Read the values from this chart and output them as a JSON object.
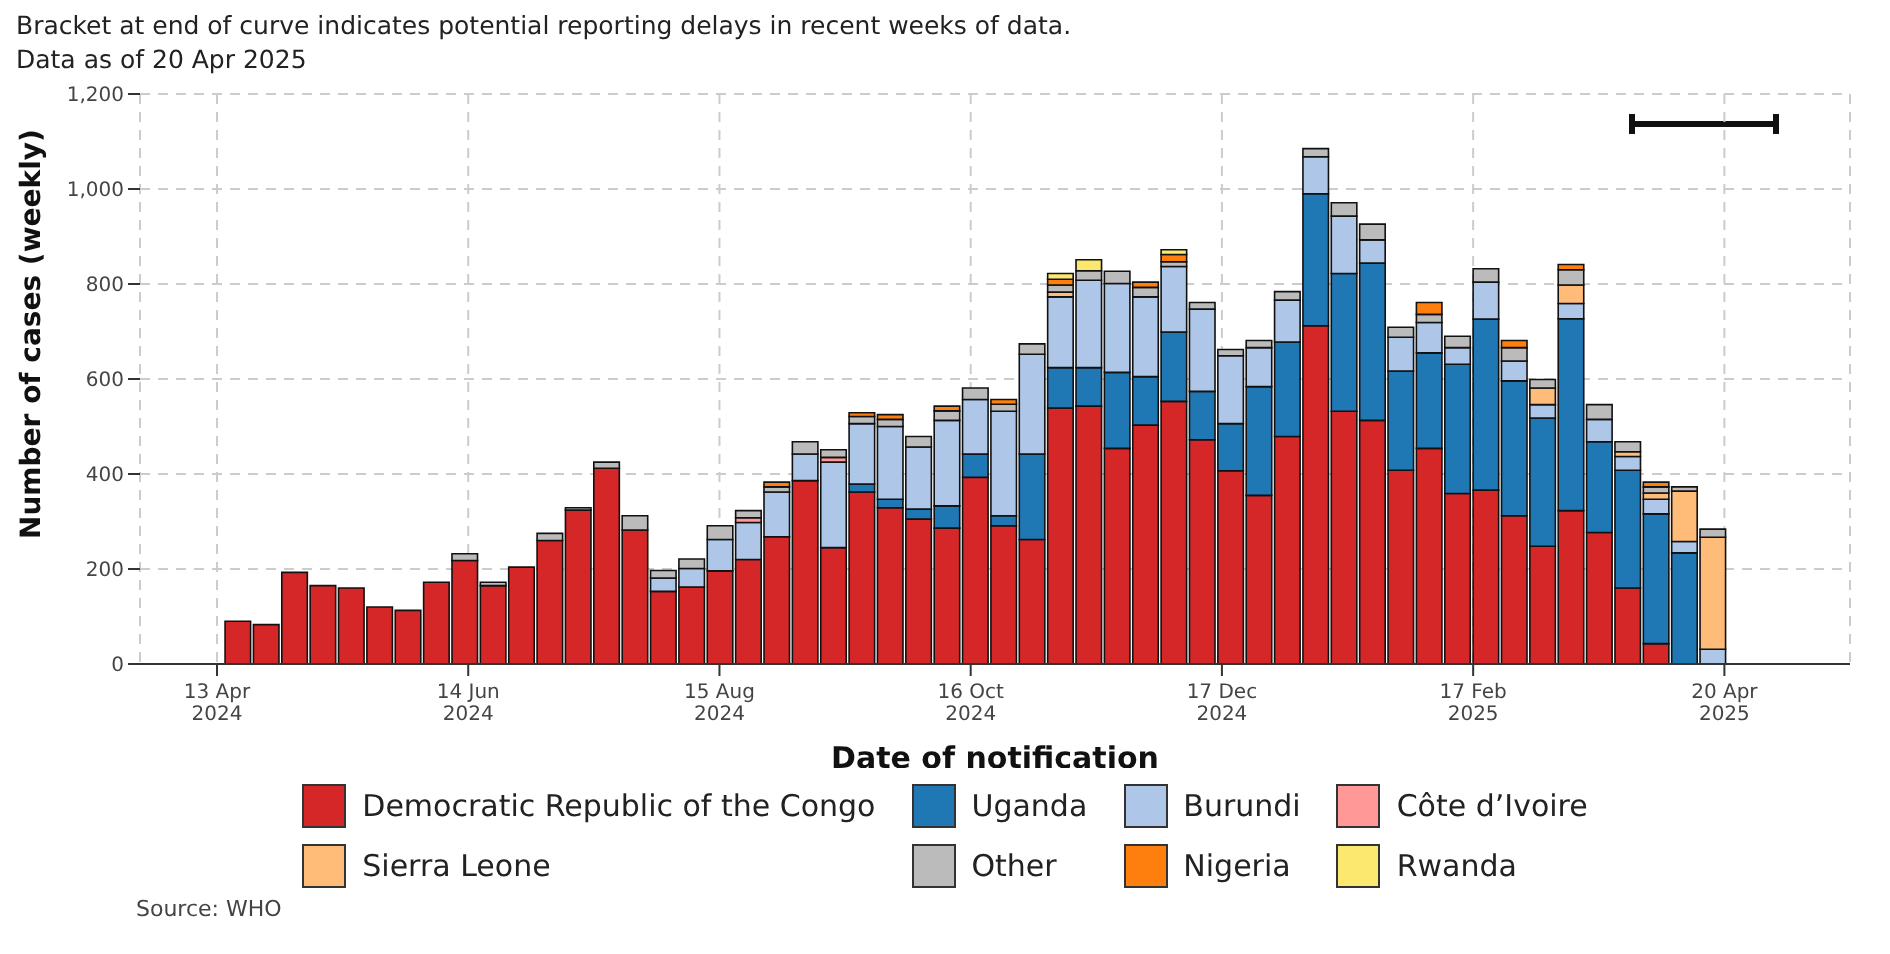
{
  "chart_data": {
    "type": "bar",
    "title": "Bracket at end of curve indicates potential reporting delays in recent weeks of data.",
    "subtitle": "Data as of 20 Apr 2025",
    "xlabel": "Date of notification",
    "ylabel": "Number of cases (weekly)",
    "stacked": true,
    "grid": true,
    "legend": "bottom",
    "annotations": [
      "Source: WHO"
    ],
    "x": [
      "2024-04-18",
      "2024-04-25",
      "2024-05-02",
      "2024-05-09",
      "2024-05-16",
      "2024-05-23",
      "2024-05-30",
      "2024-06-06",
      "2024-06-13",
      "2024-06-20",
      "2024-06-27",
      "2024-07-04",
      "2024-07-11",
      "2024-07-18",
      "2024-07-25",
      "2024-08-01",
      "2024-08-08",
      "2024-08-15",
      "2024-08-22",
      "2024-08-29",
      "2024-09-05",
      "2024-09-12",
      "2024-09-19",
      "2024-09-26",
      "2024-10-03",
      "2024-10-10",
      "2024-10-17",
      "2024-10-24",
      "2024-10-31",
      "2024-11-07",
      "2024-11-14",
      "2024-11-21",
      "2024-11-28",
      "2024-12-05",
      "2024-12-12",
      "2024-12-19",
      "2024-12-26",
      "2025-01-02",
      "2025-01-09",
      "2025-01-16",
      "2025-01-23",
      "2025-01-30",
      "2025-02-06",
      "2025-02-13",
      "2025-02-20",
      "2025-02-27",
      "2025-03-06",
      "2025-03-13",
      "2025-03-20",
      "2025-03-27",
      "2025-04-03",
      "2025-04-10",
      "2025-04-17"
    ],
    "series": [
      {
        "name": "Democratic Republic of the Congo",
        "color": "#d62728",
        "values": [
          90,
          83,
          193,
          165,
          160,
          120,
          113,
          172,
          218,
          165,
          204,
          260,
          324,
          412,
          282,
          153,
          162,
          196,
          220,
          268,
          386,
          245,
          362,
          329,
          305,
          286,
          393,
          291,
          262,
          539,
          543,
          454,
          503,
          553,
          472,
          407,
          355,
          479,
          712,
          532,
          513,
          408,
          454,
          359,
          366,
          312,
          248,
          323,
          277,
          160,
          43,
          0,
          0
        ]
      },
      {
        "name": "Uganda",
        "color": "#1f77b4",
        "values": [
          0,
          0,
          0,
          0,
          0,
          0,
          0,
          0,
          0,
          0,
          0,
          0,
          0,
          0,
          0,
          0,
          0,
          0,
          0,
          0,
          0,
          0,
          17,
          18,
          21,
          47,
          49,
          21,
          180,
          85,
          81,
          160,
          102,
          146,
          102,
          99,
          229,
          199,
          278,
          290,
          331,
          209,
          201,
          272,
          360,
          284,
          270,
          404,
          191,
          248,
          273,
          234,
          0
        ]
      },
      {
        "name": "Burundi",
        "color": "#aec7e8",
        "values": [
          0,
          0,
          0,
          0,
          0,
          0,
          0,
          0,
          0,
          0,
          0,
          0,
          0,
          0,
          0,
          28,
          39,
          66,
          78,
          94,
          56,
          180,
          127,
          153,
          131,
          180,
          115,
          220,
          210,
          149,
          184,
          187,
          168,
          138,
          173,
          143,
          82,
          88,
          78,
          121,
          49,
          71,
          64,
          35,
          78,
          42,
          28,
          32,
          47,
          29,
          31,
          24,
          31
        ]
      },
      {
        "name": "Côte d’Ivoire",
        "color": "#ff9896",
        "values": [
          0,
          0,
          0,
          0,
          0,
          0,
          0,
          0,
          0,
          0,
          0,
          0,
          0,
          0,
          0,
          0,
          0,
          0,
          10,
          0,
          0,
          10,
          0,
          0,
          0,
          0,
          0,
          0,
          0,
          0,
          0,
          0,
          0,
          0,
          0,
          0,
          0,
          0,
          0,
          0,
          0,
          0,
          0,
          0,
          0,
          0,
          0,
          0,
          0,
          0,
          0,
          0,
          0
        ]
      },
      {
        "name": "Sierra Leone",
        "color": "#ffbb78",
        "values": [
          0,
          0,
          0,
          0,
          0,
          0,
          0,
          0,
          0,
          0,
          0,
          0,
          0,
          0,
          0,
          0,
          0,
          0,
          0,
          0,
          0,
          0,
          0,
          0,
          0,
          0,
          0,
          0,
          0,
          10,
          0,
          0,
          0,
          0,
          0,
          0,
          0,
          0,
          0,
          0,
          0,
          0,
          0,
          0,
          0,
          0,
          35,
          39,
          0,
          10,
          13,
          106,
          236
        ]
      },
      {
        "name": "Other",
        "color": "#bbbbbb",
        "values": [
          0,
          0,
          0,
          0,
          0,
          0,
          0,
          0,
          14,
          7,
          0,
          15,
          5,
          13,
          30,
          16,
          20,
          29,
          15,
          11,
          26,
          16,
          15,
          15,
          22,
          20,
          24,
          15,
          22,
          15,
          20,
          26,
          20,
          10,
          14,
          13,
          15,
          18,
          17,
          28,
          33,
          21,
          17,
          24,
          28,
          28,
          18,
          32,
          31,
          21,
          13,
          9,
          17
        ]
      },
      {
        "name": "Nigeria",
        "color": "#ff7f0e",
        "values": [
          0,
          0,
          0,
          0,
          0,
          0,
          0,
          0,
          0,
          0,
          0,
          0,
          0,
          0,
          0,
          0,
          0,
          0,
          0,
          10,
          0,
          0,
          8,
          10,
          0,
          10,
          0,
          10,
          0,
          12,
          0,
          0,
          11,
          15,
          0,
          0,
          0,
          0,
          0,
          0,
          0,
          0,
          25,
          0,
          0,
          15,
          0,
          11,
          0,
          0,
          10,
          0,
          0
        ]
      },
      {
        "name": "Rwanda",
        "color": "#fde86f",
        "values": [
          0,
          0,
          0,
          0,
          0,
          0,
          0,
          0,
          0,
          0,
          0,
          0,
          0,
          0,
          0,
          0,
          0,
          0,
          0,
          0,
          0,
          0,
          0,
          0,
          0,
          0,
          0,
          0,
          0,
          12,
          23,
          0,
          0,
          10,
          0,
          0,
          0,
          0,
          0,
          0,
          0,
          0,
          0,
          0,
          0,
          0,
          0,
          0,
          0,
          0,
          0,
          0,
          0
        ]
      }
    ],
    "xlim": [
      "2024-03-25",
      "2025-05-21"
    ],
    "xticks": [
      {
        "value": "2024-04-13",
        "label": "13 Apr\n2024"
      },
      {
        "value": "2024-06-14",
        "label": "14 Jun\n2024"
      },
      {
        "value": "2024-08-15",
        "label": "15 Aug\n2024"
      },
      {
        "value": "2024-10-16",
        "label": "16 Oct\n2024"
      },
      {
        "value": "2024-12-17",
        "label": "17 Dec\n2024"
      },
      {
        "value": "2025-02-17",
        "label": "17 Feb\n2025"
      },
      {
        "value": "2025-04-20",
        "label": "20 Apr\n2025"
      }
    ],
    "ylim": [
      0,
      1200
    ],
    "yticks": [
      0,
      200,
      400,
      600,
      800,
      {
        "value": 1000,
        "label": "1,000"
      },
      {
        "value": 1200,
        "label": "1,200"
      }
    ]
  }
}
